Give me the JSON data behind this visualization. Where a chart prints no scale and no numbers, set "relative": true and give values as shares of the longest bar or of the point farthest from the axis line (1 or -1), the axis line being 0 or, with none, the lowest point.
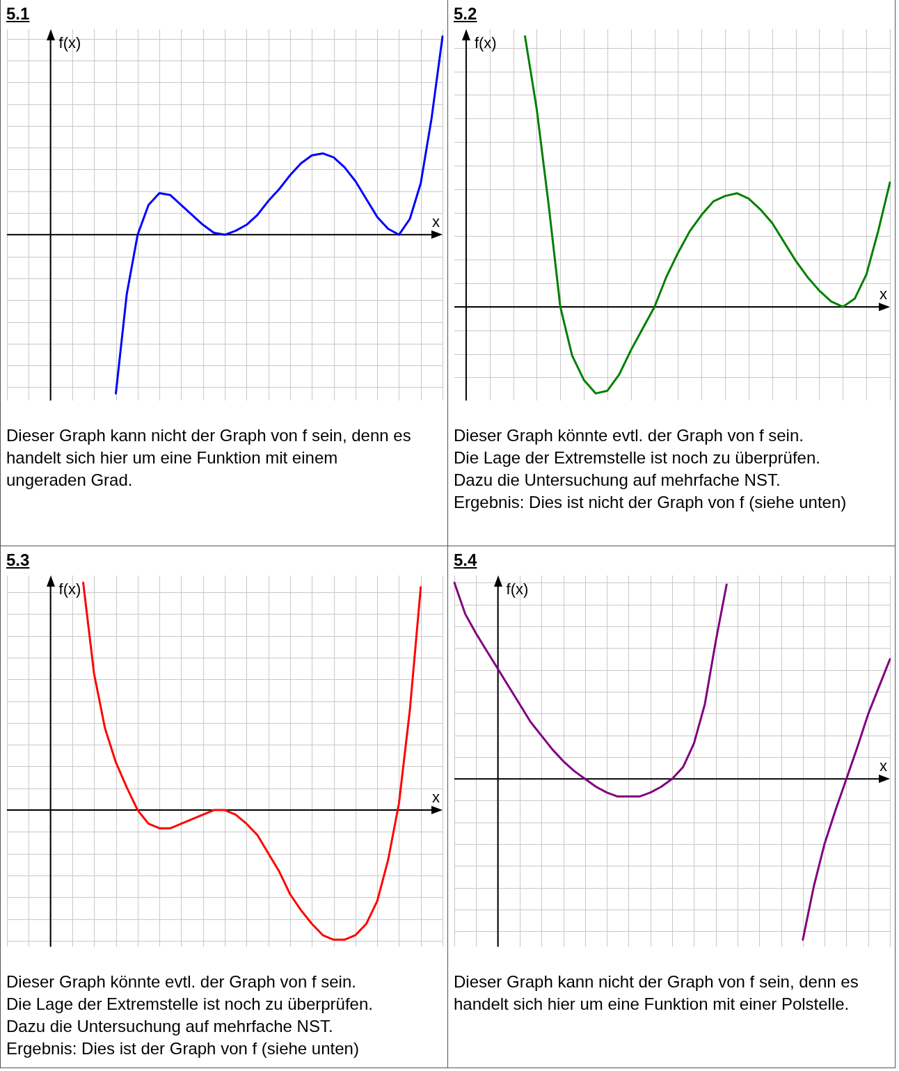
{
  "chart_data": [
    {
      "type": "line",
      "title": "5.1",
      "xlabel": "x",
      "ylabel": "f(x)",
      "relative": true,
      "grid": true,
      "marker": "none",
      "categories": [
        null,
        null,
        null,
        null,
        null,
        null,
        null,
        null,
        null,
        null,
        null,
        null,
        null,
        null,
        null,
        null,
        null,
        null,
        null,
        null,
        null,
        null,
        null,
        null,
        null,
        null,
        null,
        null,
        null,
        null,
        null,
        null,
        null,
        null,
        null,
        null,
        null,
        null,
        null,
        null,
        null
      ],
      "series": [
        {
          "color": "#0000ff",
          "values": [
            null,
            null,
            null,
            null,
            null,
            null,
            null,
            null,
            null,
            null,
            -0.8,
            -0.3,
            0,
            0.15,
            0.21,
            0.2,
            0.15,
            0.1,
            0.05,
            0.01,
            0,
            0.02,
            0.05,
            0.1,
            0.17,
            0.23,
            0.3,
            0.36,
            0.4,
            0.41,
            0.39,
            0.34,
            0.27,
            0.18,
            0.09,
            0.03,
            0,
            0.08,
            0.26,
            0.59,
            1
          ]
        }
      ],
      "annotations": [
        "Dieser Graph kann nicht der Graph von f sein, denn es handelt sich hier um eine Funktion mit einem ungeraden Grad."
      ]
    },
    {
      "type": "line",
      "title": "5.2",
      "xlabel": "x",
      "ylabel": "f(x)",
      "relative": true,
      "grid": true,
      "marker": "none",
      "categories": [
        null,
        null,
        null,
        null,
        null,
        null,
        null,
        null,
        null,
        null,
        null,
        null,
        null,
        null,
        null,
        null,
        null,
        null,
        null,
        null,
        null,
        null,
        null,
        null,
        null,
        null,
        null,
        null,
        null,
        null,
        null,
        null,
        null,
        null,
        null,
        null,
        null,
        null
      ],
      "series": [
        {
          "color": "#008000",
          "values": [
            null,
            null,
            null,
            null,
            null,
            null,
            1,
            0.73,
            0.38,
            0,
            -0.18,
            -0.27,
            -0.32,
            -0.31,
            -0.25,
            -0.16,
            -0.08,
            0,
            0.11,
            0.2,
            0.28,
            0.34,
            0.39,
            0.41,
            0.42,
            0.4,
            0.36,
            0.31,
            0.24,
            0.17,
            0.11,
            0.06,
            0.02,
            0,
            0.03,
            0.12,
            0.28,
            0.46
          ]
        }
      ],
      "annotations": [
        "Dieser Graph könnte evtl. der Graph von f sein.",
        "Die Lage der Extremstelle ist noch zu überprüfen.",
        "Dazu die Untersuchung auf mehrfache NST.",
        "Ergebnis: Dies ist nicht der Graph von f (siehe unten)"
      ]
    },
    {
      "type": "line",
      "title": "5.3",
      "xlabel": "x",
      "ylabel": "f(x)",
      "relative": true,
      "grid": true,
      "marker": "none",
      "categories": [
        null,
        null,
        null,
        null,
        null,
        null,
        null,
        null,
        null,
        null,
        null,
        null,
        null,
        null,
        null,
        null,
        null,
        null,
        null,
        null,
        null,
        null,
        null,
        null,
        null,
        null,
        null,
        null,
        null,
        null,
        null,
        null,
        null,
        null,
        null,
        null,
        null,
        null,
        null,
        null,
        null
      ],
      "series": [
        {
          "color": "#ff0000",
          "values": [
            null,
            null,
            null,
            null,
            null,
            null,
            null,
            1,
            0.6,
            0.36,
            0.21,
            0.1,
            0,
            -0.06,
            -0.08,
            -0.08,
            -0.06,
            -0.04,
            -0.02,
            0,
            0,
            -0.02,
            -0.06,
            -0.11,
            -0.19,
            -0.27,
            -0.37,
            -0.44,
            -0.5,
            -0.55,
            -0.57,
            -0.57,
            -0.55,
            -0.5,
            -0.4,
            -0.22,
            0.03,
            0.44,
            0.98,
            null,
            null
          ]
        }
      ],
      "annotations": [
        "Dieser Graph könnte evtl. der Graph von f sein.",
        "Die Lage der Extremstelle ist noch zu überprüfen.",
        "Dazu die Untersuchung auf mehrfache NST.",
        "Ergebnis: Dies ist der Graph von f (siehe unten)"
      ]
    },
    {
      "type": "line",
      "title": "5.4",
      "xlabel": "x",
      "ylabel": "f(x)",
      "relative": true,
      "grid": true,
      "marker": "none",
      "categories": [
        null,
        null,
        null,
        null,
        null,
        null,
        null,
        null,
        null,
        null,
        null,
        null,
        null,
        null,
        null,
        null,
        null,
        null,
        null,
        null,
        null,
        null,
        null,
        null,
        null,
        null,
        null,
        null,
        null,
        null,
        null,
        null,
        null,
        null,
        null,
        null,
        null,
        null,
        null,
        null,
        null
      ],
      "series": [
        {
          "color": "#800080",
          "values": [
            1,
            0.84,
            0.74,
            0.65,
            0.56,
            0.47,
            0.38,
            0.29,
            0.22,
            0.15,
            0.09,
            0.04,
            0,
            -0.04,
            -0.07,
            -0.09,
            -0.09,
            -0.09,
            -0.07,
            -0.04,
            0,
            0.06,
            0.18,
            0.38,
            0.7,
            0.99,
            null,
            null,
            null,
            null,
            null,
            null,
            null,
            null,
            null,
            null,
            null,
            null,
            null,
            null,
            null
          ]
        },
        {
          "color": "#800080",
          "values": [
            null,
            null,
            null,
            null,
            null,
            null,
            null,
            null,
            null,
            null,
            null,
            null,
            null,
            null,
            null,
            null,
            null,
            null,
            null,
            null,
            null,
            null,
            null,
            null,
            null,
            null,
            null,
            null,
            null,
            null,
            null,
            null,
            -0.82,
            -0.55,
            -0.33,
            -0.16,
            0,
            0.16,
            0.33,
            0.47,
            0.61
          ]
        }
      ],
      "annotations": [
        "Dieser Graph kann nicht der Graph von f sein, denn es handelt sich hier um eine Funktion mit einer Polstelle."
      ]
    }
  ]
}
